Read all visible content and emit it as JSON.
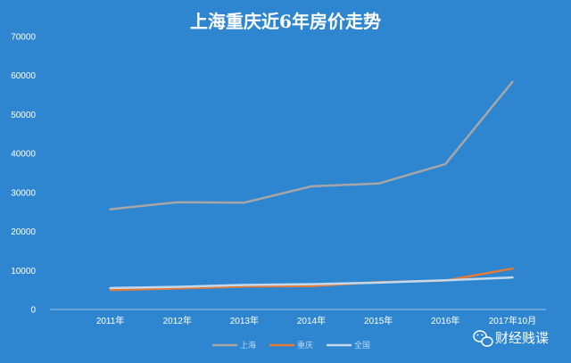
{
  "chart_data": {
    "type": "line",
    "title": "上海重庆近6年房价走势",
    "categories": [
      "2011年",
      "2012年",
      "2013年",
      "2014年",
      "2015年",
      "2016年",
      "2017年10月"
    ],
    "ylim": [
      0,
      70000
    ],
    "yticks": [
      "0",
      "10000",
      "20000",
      "30000",
      "40000",
      "50000",
      "60000",
      "70000"
    ],
    "grid": false,
    "legend_position": "bottom",
    "series": [
      {
        "name": "上海",
        "color": "#a6a6a6",
        "values": [
          25700,
          27500,
          27400,
          31600,
          32300,
          37300,
          58400
        ]
      },
      {
        "name": "重庆",
        "color": "#e07b3a",
        "values": [
          5000,
          5400,
          5900,
          6000,
          7000,
          7400,
          10500
        ]
      },
      {
        "name": "全国",
        "color": "#c3d9ec",
        "values": [
          5500,
          5800,
          6300,
          6500,
          6900,
          7500,
          8200
        ]
      }
    ]
  },
  "watermark": {
    "label": "财经贱谍",
    "icon": "wechat-icon"
  }
}
